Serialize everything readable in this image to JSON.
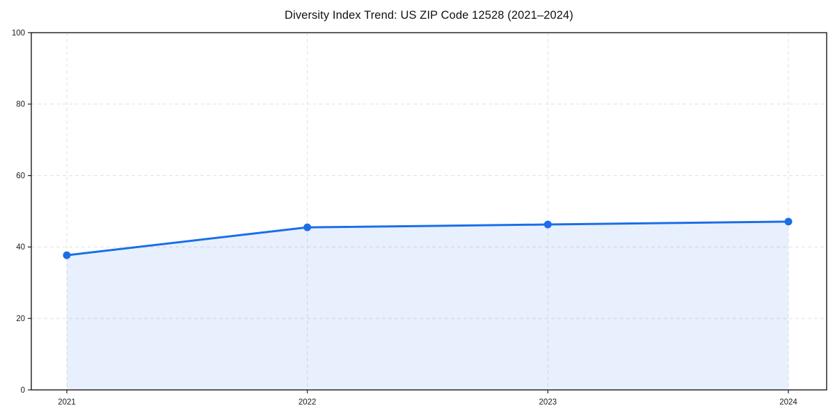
{
  "figure": {
    "title": "Diversity Index Trend: US ZIP Code 12528 (2021–2024)"
  },
  "chart_data": {
    "type": "line",
    "title": "Diversity Index Trend: US ZIP Code 12528 (2021–2024)",
    "x": [
      2021,
      2022,
      2023,
      2024
    ],
    "x_tick_labels": [
      "2021",
      "2022",
      "2023",
      "2024"
    ],
    "series": [
      {
        "name": "Diversity Index",
        "values": [
          37.7,
          45.5,
          46.3,
          47.1
        ]
      }
    ],
    "xlabel": "",
    "ylabel": "",
    "ylim": [
      0,
      100
    ],
    "y_ticks": [
      0,
      20,
      40,
      60,
      80,
      100
    ],
    "grid": true,
    "grid_style": "dashed",
    "legend_position": "none",
    "area_fill": true,
    "marker": "circle",
    "colors": {
      "line": "#1a6ee8",
      "marker": "#1a6ee8",
      "area_fill": "rgba(26,110,232,0.10)",
      "gridline": "#e0e0e0",
      "spine": "#1a1a1a",
      "text": "#1a1a1a",
      "background": "#ffffff"
    }
  }
}
